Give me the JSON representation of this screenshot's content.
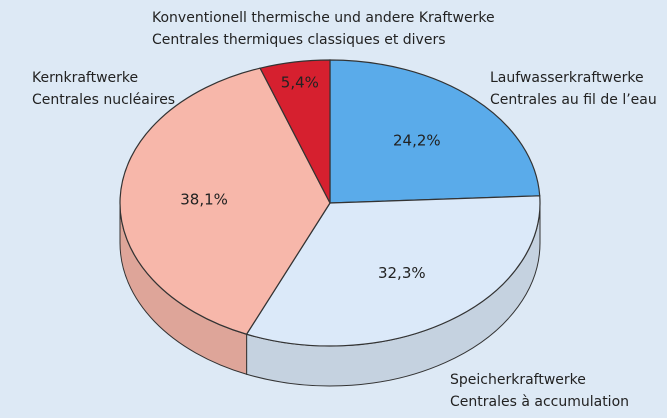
{
  "chart_data": {
    "type": "pie",
    "categories": [
      [
        "Laufwasserkraftwerke",
        "Centrales au fil de l’eau"
      ],
      [
        "Speicherkraftwerke",
        "Centrales à accumulation"
      ],
      [
        "Kernkraftwerke",
        "Centrales nucléaires"
      ],
      [
        "Konventionell  thermische und andere Kraftwerke",
        "Centrales thermiques classiques et divers"
      ]
    ],
    "values": [
      24.2,
      32.3,
      38.1,
      5.4
    ],
    "value_labels": [
      "24,2%",
      "32,3%",
      "38,1%",
      "5,4%"
    ],
    "colors": [
      "#5aabea",
      "#dbe9f9",
      "#f7b7aa",
      "#d6202f"
    ]
  }
}
